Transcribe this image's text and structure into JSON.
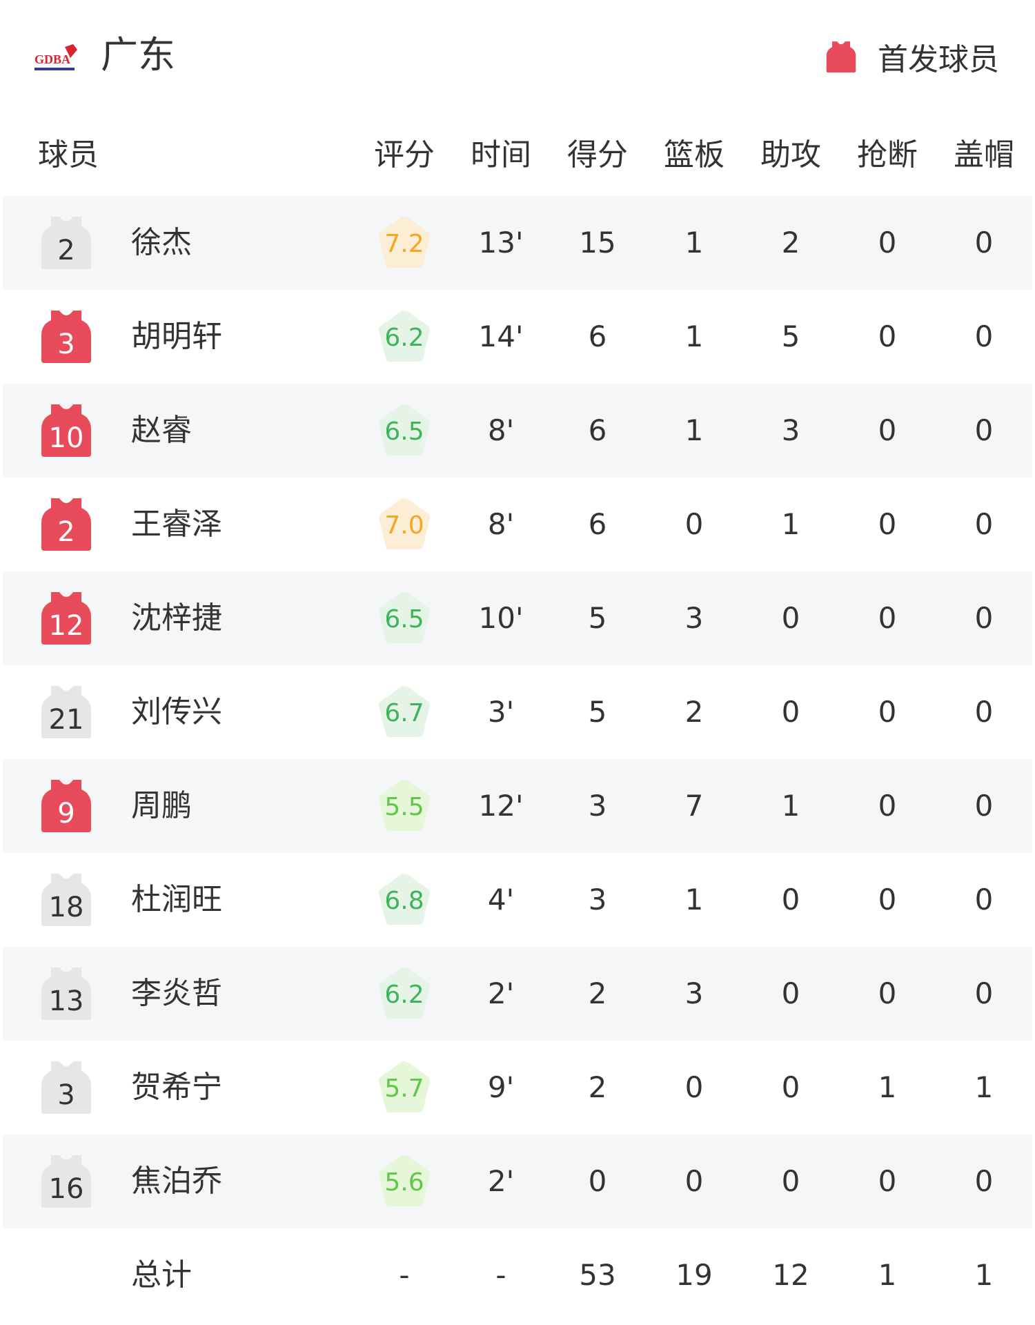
{
  "header": {
    "team": "广东",
    "logo_text": "GDBA",
    "legend_label": "首发球员",
    "legend_icon": "jersey-icon"
  },
  "colors": {
    "starter": "#e84c5a",
    "bench": "#e6e6e6",
    "row_alt": "#f5f6f8",
    "rating_high": "#f5a623",
    "rating_high_bg": "#fbeed5",
    "rating_mid": "#3cb55a",
    "rating_mid_bg": "#e6f4e8",
    "rating_low": "#5fc84a",
    "rating_low_bg": "#e6f6d8"
  },
  "columns": [
    "球员",
    "评分",
    "时间",
    "得分",
    "篮板",
    "助攻",
    "抢断",
    "盖帽"
  ],
  "players": [
    {
      "number": "2",
      "name": "徐杰",
      "starter": false,
      "rating": "7.2",
      "time": "13'",
      "pts": "15",
      "reb": "1",
      "ast": "2",
      "stl": "0",
      "blk": "0"
    },
    {
      "number": "3",
      "name": "胡明轩",
      "starter": true,
      "rating": "6.2",
      "time": "14'",
      "pts": "6",
      "reb": "1",
      "ast": "5",
      "stl": "0",
      "blk": "0"
    },
    {
      "number": "10",
      "name": "赵睿",
      "starter": true,
      "rating": "6.5",
      "time": "8'",
      "pts": "6",
      "reb": "1",
      "ast": "3",
      "stl": "0",
      "blk": "0"
    },
    {
      "number": "2",
      "name": "王睿泽",
      "starter": true,
      "rating": "7.0",
      "time": "8'",
      "pts": "6",
      "reb": "0",
      "ast": "1",
      "stl": "0",
      "blk": "0"
    },
    {
      "number": "12",
      "name": "沈梓捷",
      "starter": true,
      "rating": "6.5",
      "time": "10'",
      "pts": "5",
      "reb": "3",
      "ast": "0",
      "stl": "0",
      "blk": "0"
    },
    {
      "number": "21",
      "name": "刘传兴",
      "starter": false,
      "rating": "6.7",
      "time": "3'",
      "pts": "5",
      "reb": "2",
      "ast": "0",
      "stl": "0",
      "blk": "0"
    },
    {
      "number": "9",
      "name": "周鹏",
      "starter": true,
      "rating": "5.5",
      "time": "12'",
      "pts": "3",
      "reb": "7",
      "ast": "1",
      "stl": "0",
      "blk": "0"
    },
    {
      "number": "18",
      "name": "杜润旺",
      "starter": false,
      "rating": "6.8",
      "time": "4'",
      "pts": "3",
      "reb": "1",
      "ast": "0",
      "stl": "0",
      "blk": "0"
    },
    {
      "number": "13",
      "name": "李炎哲",
      "starter": false,
      "rating": "6.2",
      "time": "2'",
      "pts": "2",
      "reb": "3",
      "ast": "0",
      "stl": "0",
      "blk": "0"
    },
    {
      "number": "3",
      "name": "贺希宁",
      "starter": false,
      "rating": "5.7",
      "time": "9'",
      "pts": "2",
      "reb": "0",
      "ast": "0",
      "stl": "1",
      "blk": "1"
    },
    {
      "number": "16",
      "name": "焦泊乔",
      "starter": false,
      "rating": "5.6",
      "time": "2'",
      "pts": "0",
      "reb": "0",
      "ast": "0",
      "stl": "0",
      "blk": "0"
    }
  ],
  "total": {
    "label": "总计",
    "rating": "-",
    "time": "-",
    "pts": "53",
    "reb": "19",
    "ast": "12",
    "stl": "1",
    "blk": "1"
  }
}
